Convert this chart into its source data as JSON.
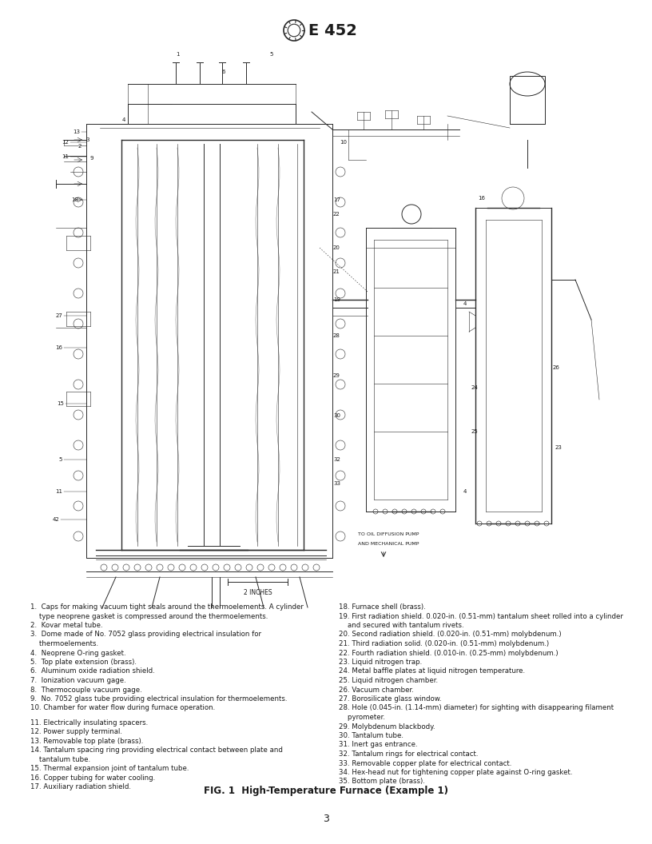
{
  "page_width": 8.16,
  "page_height": 10.56,
  "dpi": 100,
  "background": "#ffffff",
  "title": "E 452",
  "fig_caption": "FIG. 1  High-Temperature Furnace (Example 1)",
  "page_number": "3",
  "legend_left_lines": [
    {
      "text": "1.  Caps for making vacuum tight seals around the thermoelements. A cylinder",
      "indent": false
    },
    {
      "text": "    type neoprene gasket is compressed around the thermoelements.",
      "indent": true
    },
    {
      "text": "2.  Kovar metal tube.",
      "indent": false
    },
    {
      "text": "3.  Dome made of No. 7052 glass providing electrical insulation for",
      "indent": false
    },
    {
      "text": "    thermoelements.",
      "indent": true
    },
    {
      "text": "4.  Neoprene O-ring gasket.",
      "indent": false
    },
    {
      "text": "5.  Top plate extension (brass).",
      "indent": false
    },
    {
      "text": "6.  Aluminum oxide radiation shield.",
      "indent": false
    },
    {
      "text": "7.  Ionization vacuum gage.",
      "indent": false
    },
    {
      "text": "8.  Thermocouple vacuum gage.",
      "indent": false
    },
    {
      "text": "9.  No. 7052 glass tube providing electrical insulation for thermoelements.",
      "indent": false
    },
    {
      "text": "10. Chamber for water flow during furnace operation.",
      "indent": false
    },
    {
      "text": "",
      "indent": false
    },
    {
      "text": "11. Electrically insulating spacers.",
      "indent": false
    },
    {
      "text": "12. Power supply terminal.",
      "indent": false
    },
    {
      "text": "13. Removable top plate (brass).",
      "indent": false
    },
    {
      "text": "14. Tantalum spacing ring providing electrical contact between plate and",
      "indent": false
    },
    {
      "text": "    tantalum tube.",
      "indent": true
    },
    {
      "text": "15. Thermal expansion joint of tantalum tube.",
      "indent": false
    },
    {
      "text": "16. Copper tubing for water cooling.",
      "indent": false
    },
    {
      "text": "17. Auxiliary radiation shield.",
      "indent": false
    }
  ],
  "legend_right_lines": [
    {
      "text": "18. Furnace shell (brass).",
      "indent": false
    },
    {
      "text": "19. First radiation shield. 0.020-in. (0.51-mm) tantalum sheet rolled into a cylinder",
      "indent": false
    },
    {
      "text": "    and secured with tantalum rivets.",
      "indent": true
    },
    {
      "text": "20. Second radiation shield. (0.020-in. (0.51-mm) molybdenum.)",
      "indent": false
    },
    {
      "text": "21. Third radiation solid. (0.020-in. (0.51-mm) molybdenum.)",
      "indent": false
    },
    {
      "text": "22. Fourth radiation shield. (0.010-in. (0.25-mm) molybdenum.)",
      "indent": false
    },
    {
      "text": "23. Liquid nitrogen trap.",
      "indent": false
    },
    {
      "text": "24. Metal baffle plates at liquid nitrogen temperature.",
      "indent": false
    },
    {
      "text": "25. Liquid nitrogen chamber.",
      "indent": false
    },
    {
      "text": "26. Vacuum chamber.",
      "indent": false
    },
    {
      "text": "27. Borosilicate glass window.",
      "indent": false
    },
    {
      "text": "28. Hole (0.045-in. (1.14-mm) diameter) for sighting with disappearing filament",
      "indent": false
    },
    {
      "text": "    pyrometer.",
      "indent": true
    },
    {
      "text": "29. Molybdenum blackbody.",
      "indent": false
    },
    {
      "text": "30. Tantalum tube.",
      "indent": false
    },
    {
      "text": "31. Inert gas entrance.",
      "indent": false
    },
    {
      "text": "32. Tantalum rings for electrical contact.",
      "indent": false
    },
    {
      "text": "33. Removable copper plate for electrical contact.",
      "indent": false
    },
    {
      "text": "34. Hex-head nut for tightening copper plate against O-ring gasket.",
      "indent": false
    },
    {
      "text": "35. Bottom plate (brass).",
      "indent": false
    }
  ],
  "text_color": "#1a1a1a",
  "diagram_color": "#2a2a2a"
}
